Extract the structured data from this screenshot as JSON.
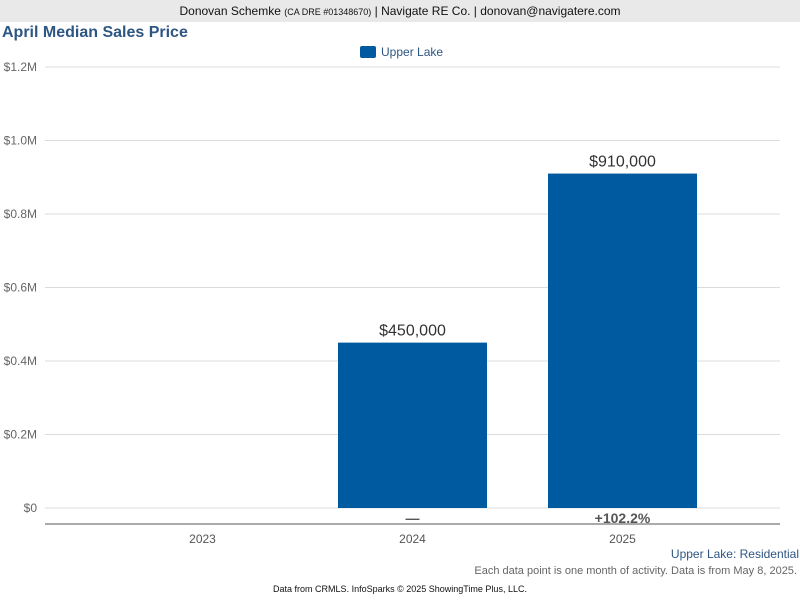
{
  "header": {
    "agent": "Donovan Schemke",
    "license": "(CA DRE #01348670)",
    "company": "| Navigate RE Co. | donovan@navigatere.com"
  },
  "chart_data": {
    "type": "bar",
    "title": "April Median Sales Price",
    "categories": [
      "2023",
      "2024",
      "2025"
    ],
    "series": [
      {
        "name": "Upper Lake",
        "color": "#005a9f",
        "values": [
          null,
          450000,
          910000
        ]
      }
    ],
    "data_labels": [
      "",
      "$450,000",
      "$910,000"
    ],
    "change_labels": [
      "",
      "—",
      "+102.2%"
    ],
    "ylim": [
      0,
      1200000
    ],
    "yticks": [
      {
        "value": 0,
        "label": "$0"
      },
      {
        "value": 200000,
        "label": "$0.2M"
      },
      {
        "value": 400000,
        "label": "$0.4M"
      },
      {
        "value": 600000,
        "label": "$0.6M"
      },
      {
        "value": 800000,
        "label": "$0.8M"
      },
      {
        "value": 1000000,
        "label": "$1.0M"
      },
      {
        "value": 1200000,
        "label": "$1.2M"
      }
    ],
    "grid": true,
    "legend_position": "top-center",
    "xlabel": "",
    "ylabel": ""
  },
  "captions": {
    "series": "Upper Lake: Residential",
    "note": "Each data point is one month of activity. Data is from May 8, 2025."
  },
  "footer": "Data from CRMLS. InfoSparks © 2025 ShowingTime Plus, LLC."
}
